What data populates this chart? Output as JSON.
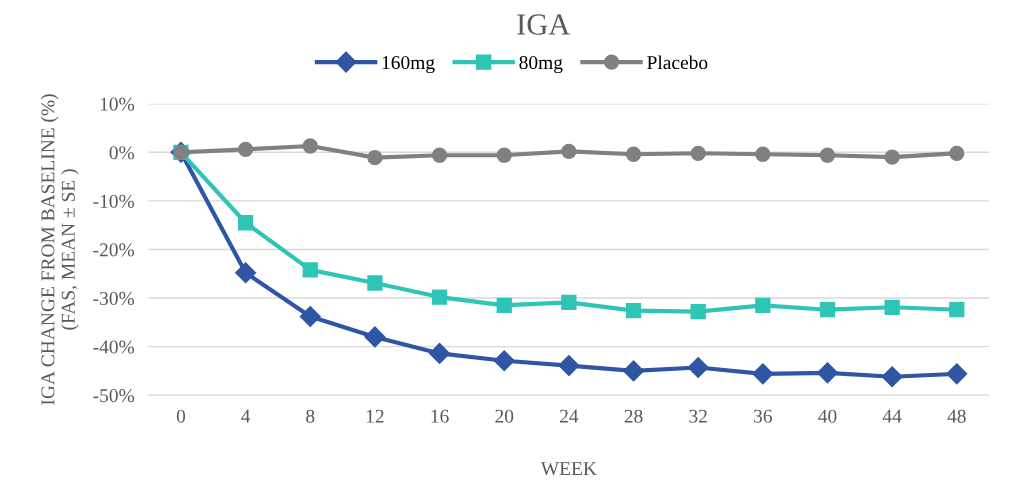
{
  "chart_data": {
    "type": "line",
    "title": "IGA",
    "xlabel": "WEEK",
    "ylabel": "IGA CHANGE FROM BASELINE (%)\n(FAS, MEAN ± SE )",
    "categories": [
      "0",
      "4",
      "8",
      "12",
      "16",
      "20",
      "24",
      "28",
      "32",
      "36",
      "40",
      "44",
      "48"
    ],
    "series": [
      {
        "name": "160mg",
        "color": "#2f55a4",
        "marker": "diamond",
        "values": [
          0,
          -24.8,
          -33.8,
          -38.0,
          -41.4,
          -42.9,
          -43.9,
          -45.0,
          -44.3,
          -45.6,
          -45.4,
          -46.2,
          -45.6
        ]
      },
      {
        "name": "80mg",
        "color": "#2ec4b6",
        "marker": "square",
        "values": [
          0,
          -14.5,
          -24.2,
          -26.9,
          -29.8,
          -31.5,
          -30.9,
          -32.6,
          -32.8,
          -31.5,
          -32.4,
          -31.9,
          -32.4
        ]
      },
      {
        "name": "Placebo",
        "color": "#808080",
        "marker": "circle",
        "values": [
          0,
          0.6,
          1.3,
          -1.1,
          -0.6,
          -0.6,
          0.2,
          -0.4,
          -0.2,
          -0.4,
          -0.6,
          -1.0,
          -0.2
        ]
      }
    ],
    "ylim": [
      -50,
      10
    ],
    "yticks": [
      {
        "value": 10,
        "label": "10%"
      },
      {
        "value": 0,
        "label": "0%"
      },
      {
        "value": -10,
        "label": "-10%"
      },
      {
        "value": -20,
        "label": "-20%"
      },
      {
        "value": -30,
        "label": "-30%"
      },
      {
        "value": -40,
        "label": "-40%"
      },
      {
        "value": -50,
        "label": "-50%"
      }
    ],
    "grid": "y",
    "legend": "top"
  }
}
